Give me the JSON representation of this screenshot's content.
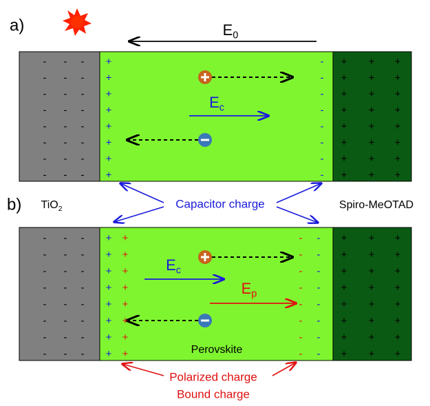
{
  "panel_a": {
    "label": "a)",
    "field_e0": {
      "main": "E",
      "sub": "0"
    },
    "field_ec": {
      "main": "E",
      "sub": "c"
    }
  },
  "panel_b": {
    "label": "b)",
    "field_ec": {
      "main": "E",
      "sub": "c"
    },
    "field_ep": {
      "main": "E",
      "sub": "p"
    },
    "perovskite": "Perovskite"
  },
  "labels": {
    "tio2": {
      "main": "TiO",
      "sub": "2"
    },
    "capacitor_charge": "Capacitor charge",
    "spiro": "Spiro-MeOTAD",
    "polarized_charge": "Polarized charge",
    "bound_charge": "Bound charge"
  },
  "signs": {
    "plus": "+",
    "minus": "-"
  }
}
